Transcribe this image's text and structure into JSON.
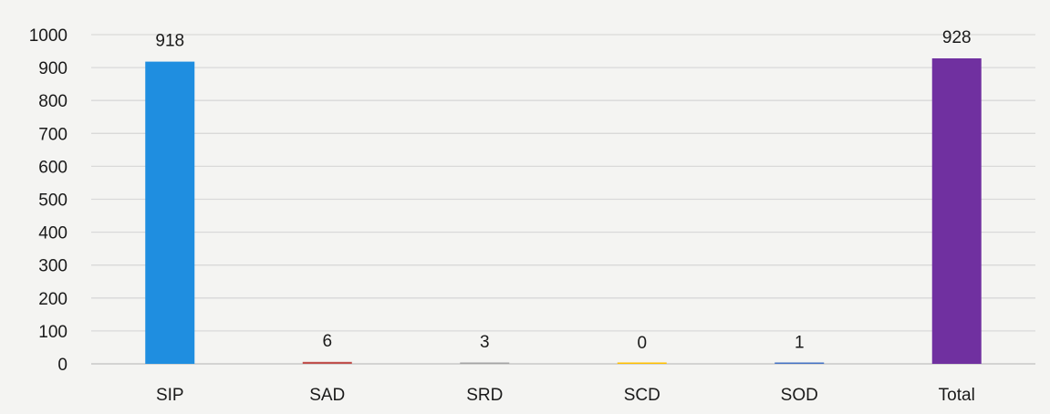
{
  "chart_data": {
    "type": "bar",
    "title": "",
    "xlabel": "",
    "ylabel": "",
    "categories": [
      "SIP",
      "SAD",
      "SRD",
      "SCD",
      "SOD",
      "Total"
    ],
    "values": [
      918,
      6,
      3,
      0,
      1,
      928
    ],
    "data_labels": [
      "918",
      "6",
      "3",
      "0",
      "1",
      "928"
    ],
    "bar_colors": [
      "#1f8ee0",
      "#c0504d",
      "#a5a5a5",
      "#ffc000",
      "#4472c4",
      "#7030a0"
    ],
    "ylim": [
      0,
      1000
    ],
    "yticks": [
      0,
      100,
      200,
      300,
      400,
      500,
      600,
      700,
      800,
      900,
      1000
    ],
    "ytick_labels": [
      "0",
      "100",
      "200",
      "300",
      "400",
      "500",
      "600",
      "700",
      "800",
      "900",
      "1000"
    ],
    "grid": true,
    "gridline_color": "#d9d9d9",
    "legend": "none"
  }
}
